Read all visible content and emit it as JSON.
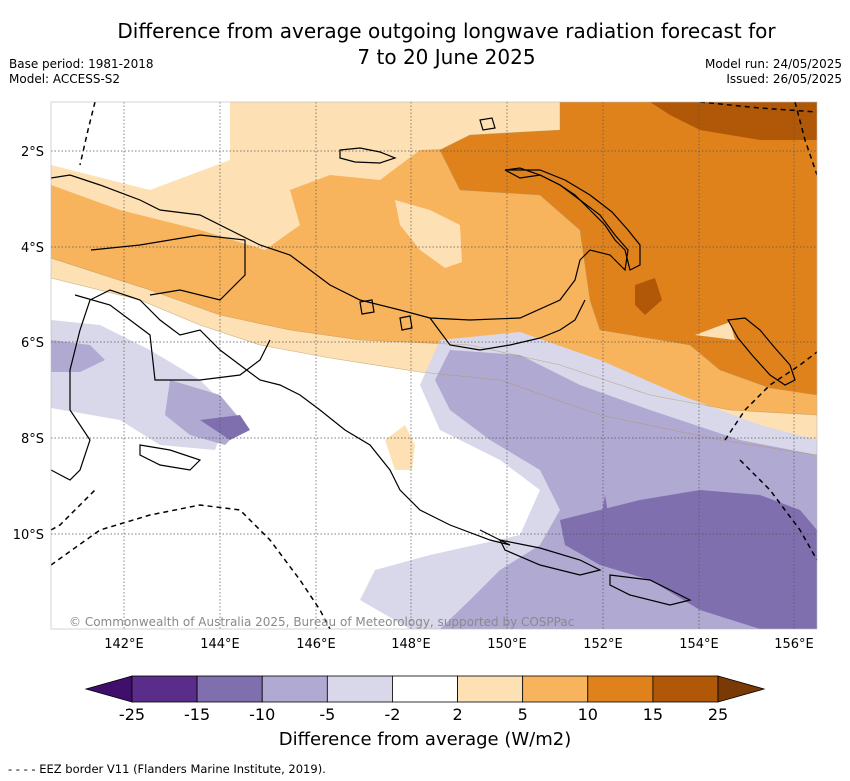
{
  "title_line1": "Difference from average outgoing longwave radiation forecast for",
  "title_line2": "7 to 20 June 2025",
  "meta_left": [
    "Base period: 1981-2018",
    "Model: ACCESS-S2"
  ],
  "meta_right": [
    "Model run: 24/05/2025",
    "Issued: 26/05/2025"
  ],
  "map": {
    "lat_labels": [
      "2°S",
      "4°S",
      "6°S",
      "8°S",
      "10°S"
    ],
    "lon_labels": [
      "142°E",
      "144°E",
      "146°E",
      "148°E",
      "150°E",
      "152°E",
      "154°E",
      "156°E"
    ],
    "copyright": "© Commonwealth of Australia 2025, Bureau of Meteorology, supported by COSPPac"
  },
  "colorbar": {
    "ticks": [
      "-25",
      "-15",
      "-10",
      "-5",
      "-2",
      "2",
      "5",
      "10",
      "15",
      "25"
    ],
    "colors": [
      "#3f0f6b",
      "#5a2d8a",
      "#7f6fae",
      "#b0a9d1",
      "#d8d8ea",
      "#ffffff",
      "#fde0b4",
      "#f8b35d",
      "#e0821c",
      "#b05808",
      "#7a3a05"
    ],
    "label": "Difference from average (W/m2)"
  },
  "legend_note": "- -  - -  EEZ border V11 (Flanders Marine Institute, 2019)."
}
